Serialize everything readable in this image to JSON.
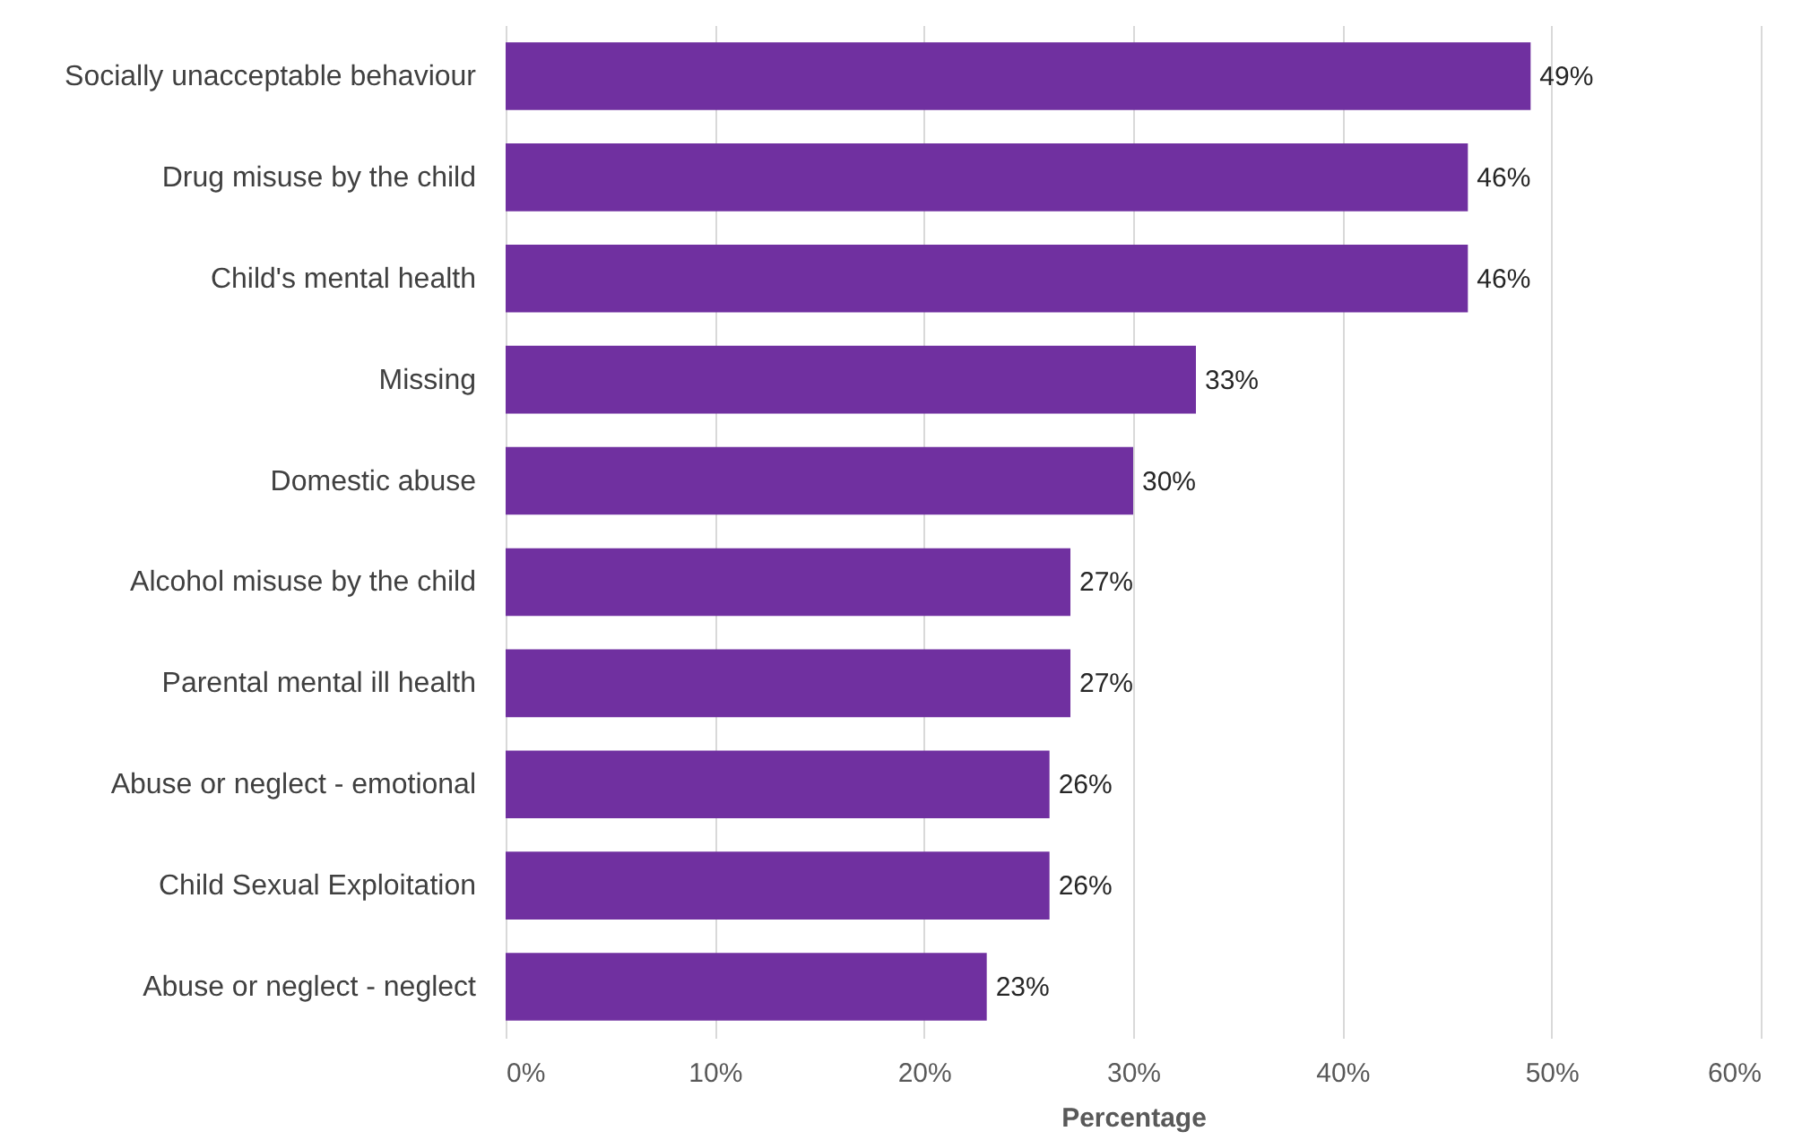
{
  "chart_data": {
    "type": "bar",
    "orientation": "horizontal",
    "xlabel": "Percentage",
    "categories": [
      "Socially unacceptable behaviour",
      "Drug misuse by the child",
      "Child's mental health",
      "Missing",
      "Domestic abuse",
      "Alcohol misuse by the child",
      "Parental mental ill health",
      "Abuse or neglect - emotional",
      "Child Sexual Exploitation",
      "Abuse or neglect - neglect"
    ],
    "values": [
      49,
      46,
      46,
      33,
      30,
      27,
      27,
      26,
      26,
      23
    ],
    "value_labels": [
      "49%",
      "46%",
      "46%",
      "33%",
      "30%",
      "27%",
      "27%",
      "26%",
      "26%",
      "23%"
    ],
    "color": "#7030a0",
    "xlim": [
      0,
      60
    ],
    "xticks": [
      {
        "value": 0,
        "label": "0%"
      },
      {
        "value": 10,
        "label": "10%"
      },
      {
        "value": 20,
        "label": "20%"
      },
      {
        "value": 30,
        "label": "30%"
      },
      {
        "value": 40,
        "label": "40%"
      },
      {
        "value": 50,
        "label": "50%"
      },
      {
        "value": 60,
        "label": "60%"
      }
    ],
    "grid": "x"
  }
}
